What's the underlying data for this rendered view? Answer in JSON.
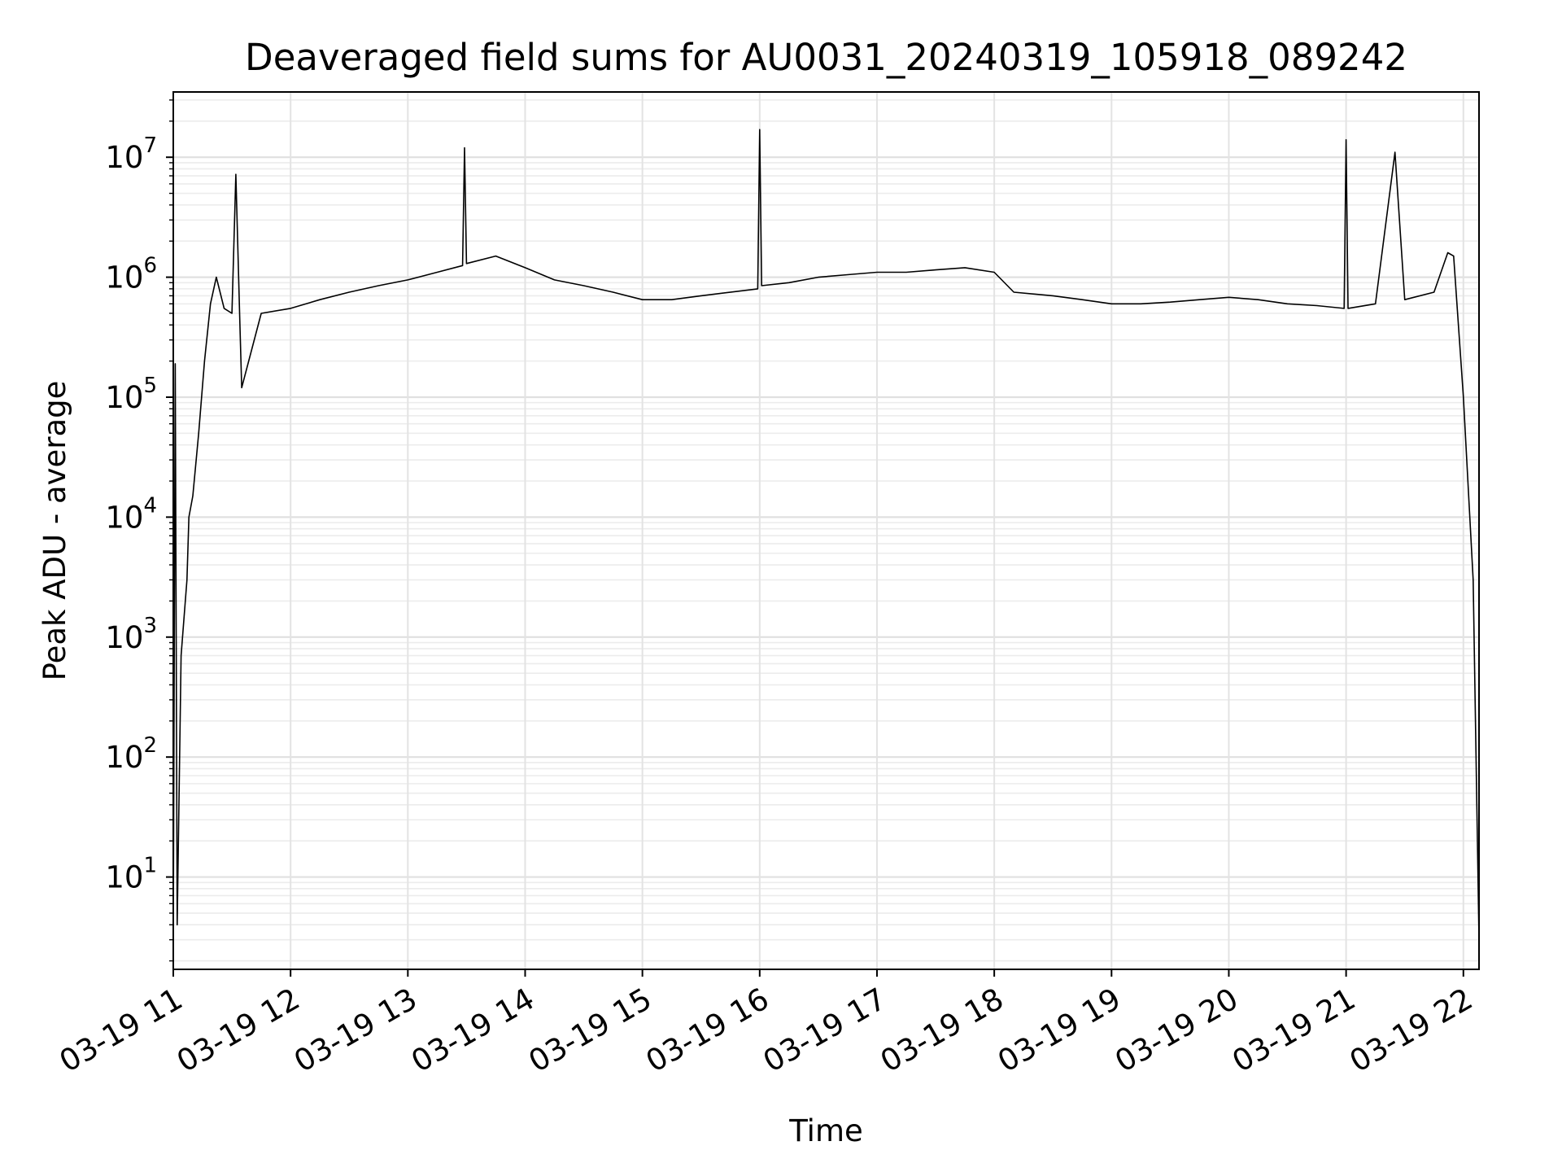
{
  "chart_data": {
    "type": "line",
    "title": "Deaveraged field sums for AU0031_20240319_105918_089242",
    "xlabel": "Time",
    "ylabel": "Peak ADU - average",
    "yscale": "log",
    "xlim": [
      "2024-03-19 11:00",
      "2024-03-19 22:08"
    ],
    "ylim": [
      1.7,
      35000000.0
    ],
    "grid": {
      "major": true,
      "minor": true
    },
    "x_tick_labels": [
      "03-19 11",
      "03-19 12",
      "03-19 13",
      "03-19 14",
      "03-19 15",
      "03-19 16",
      "03-19 17",
      "03-19 18",
      "03-19 19",
      "03-19 20",
      "03-19 21",
      "03-19 22"
    ],
    "y_ticks": [
      {
        "base": "10",
        "exp": "1"
      },
      {
        "base": "10",
        "exp": "2"
      },
      {
        "base": "10",
        "exp": "3"
      },
      {
        "base": "10",
        "exp": "4"
      },
      {
        "base": "10",
        "exp": "5"
      },
      {
        "base": "10",
        "exp": "6"
      },
      {
        "base": "10",
        "exp": "7"
      }
    ],
    "series": [
      {
        "color": "#000000",
        "points": [
          [
            "03-19 11:00",
            3.0
          ],
          [
            "03-19 11:01",
            190000
          ],
          [
            "03-19 11:02",
            4.0
          ],
          [
            "03-19 11:04",
            700
          ],
          [
            "03-19 11:07",
            3000
          ],
          [
            "03-19 11:08",
            10000
          ],
          [
            "03-19 11:10",
            15000
          ],
          [
            "03-19 11:13",
            50000
          ],
          [
            "03-19 11:16",
            200000
          ],
          [
            "03-19 11:19",
            600000
          ],
          [
            "03-19 11:22",
            1000000
          ],
          [
            "03-19 11:26",
            550000
          ],
          [
            "03-19 11:30",
            500000
          ],
          [
            "03-19 11:32",
            7200000
          ],
          [
            "03-19 11:34",
            450000
          ],
          [
            "03-19 11:35",
            120000
          ],
          [
            "03-19 11:45",
            500000
          ],
          [
            "03-19 12:00",
            550000
          ],
          [
            "03-19 12:15",
            650000
          ],
          [
            "03-19 12:30",
            750000
          ],
          [
            "03-19 12:45",
            850000
          ],
          [
            "03-19 13:00",
            950000
          ],
          [
            "03-19 13:15",
            1100000
          ],
          [
            "03-19 13:28",
            1250000
          ],
          [
            "03-19 13:29",
            12000000
          ],
          [
            "03-19 13:30",
            1300000
          ],
          [
            "03-19 13:45",
            1500000
          ],
          [
            "03-19 14:00",
            1200000
          ],
          [
            "03-19 14:15",
            950000
          ],
          [
            "03-19 14:30",
            850000
          ],
          [
            "03-19 14:45",
            750000
          ],
          [
            "03-19 15:00",
            650000
          ],
          [
            "03-19 15:15",
            650000
          ],
          [
            "03-19 15:30",
            700000
          ],
          [
            "03-19 15:59",
            800000
          ],
          [
            "03-19 16:00",
            17000000
          ],
          [
            "03-19 16:01",
            850000
          ],
          [
            "03-19 16:15",
            900000
          ],
          [
            "03-19 16:30",
            1000000
          ],
          [
            "03-19 16:45",
            1050000
          ],
          [
            "03-19 17:00",
            1100000
          ],
          [
            "03-19 17:15",
            1100000
          ],
          [
            "03-19 17:30",
            1150000
          ],
          [
            "03-19 17:45",
            1200000
          ],
          [
            "03-19 18:00",
            1100000
          ],
          [
            "03-19 18:10",
            750000
          ],
          [
            "03-19 18:30",
            700000
          ],
          [
            "03-19 18:45",
            650000
          ],
          [
            "03-19 19:00",
            600000
          ],
          [
            "03-19 19:15",
            600000
          ],
          [
            "03-19 19:30",
            620000
          ],
          [
            "03-19 19:45",
            650000
          ],
          [
            "03-19 20:00",
            680000
          ],
          [
            "03-19 20:15",
            650000
          ],
          [
            "03-19 20:30",
            600000
          ],
          [
            "03-19 20:45",
            580000
          ],
          [
            "03-19 20:59",
            550000
          ],
          [
            "03-19 21:00",
            14000000
          ],
          [
            "03-19 21:01",
            550000
          ],
          [
            "03-19 21:15",
            600000
          ],
          [
            "03-19 21:25",
            11000000
          ],
          [
            "03-19 21:30",
            650000
          ],
          [
            "03-19 21:45",
            750000
          ],
          [
            "03-19 21:52",
            1600000
          ],
          [
            "03-19 21:55",
            1500000
          ],
          [
            "03-19 22:00",
            100000
          ],
          [
            "03-19 22:05",
            3000
          ],
          [
            "03-19 22:08",
            3.0
          ]
        ]
      }
    ]
  }
}
